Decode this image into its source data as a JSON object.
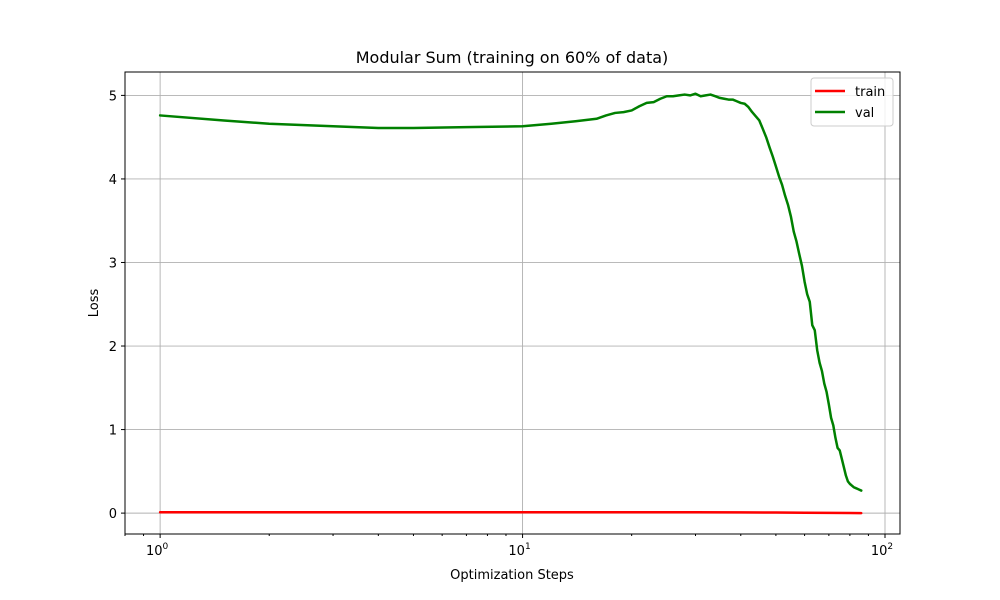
{
  "chart_data": {
    "type": "line",
    "title": "Modular Sum (training on 60% of data)",
    "xlabel": "Optimization Steps",
    "ylabel": "Loss",
    "xscale": "log",
    "xlim": [
      0.8,
      110
    ],
    "ylim": [
      -0.25,
      5.28
    ],
    "xticks": [
      {
        "value": 1,
        "base": "10",
        "exp": "0"
      },
      {
        "value": 10,
        "base": "10",
        "exp": "1"
      },
      {
        "value": 100,
        "base": "10",
        "exp": "2"
      }
    ],
    "yticks": [
      0,
      1,
      2,
      3,
      4,
      5
    ],
    "ytick_labels": [
      "0",
      "1",
      "2",
      "3",
      "4",
      "5"
    ],
    "grid": true,
    "legend_position": "top-right",
    "series": [
      {
        "name": "train",
        "color": "#ff0000",
        "x": [
          1,
          2,
          5,
          10,
          20,
          30,
          40,
          50,
          60,
          70,
          80,
          86
        ],
        "y": [
          0.01,
          0.01,
          0.01,
          0.01,
          0.01,
          0.01,
          0.009,
          0.007,
          0.005,
          0.003,
          0.001,
          0.0
        ]
      },
      {
        "name": "val",
        "color": "#008000",
        "x": [
          1,
          1.5,
          2,
          3,
          4,
          5,
          7,
          10,
          12,
          14,
          16,
          17,
          18,
          19,
          20,
          21,
          22,
          23,
          24,
          25,
          26,
          27,
          28,
          29,
          30,
          31,
          32,
          33,
          34,
          35,
          36,
          37,
          38,
          39,
          40,
          41,
          42,
          43,
          44,
          45,
          46,
          47,
          48,
          49,
          50,
          51,
          52,
          53,
          54,
          55,
          56,
          57,
          58,
          59,
          60,
          61,
          62,
          63,
          64,
          65,
          66,
          67,
          68,
          69,
          70,
          71,
          72,
          73,
          74,
          75,
          76,
          77,
          78,
          79,
          80,
          81,
          82,
          83,
          84,
          85,
          86
        ],
        "y": [
          4.76,
          4.7,
          4.66,
          4.63,
          4.61,
          4.61,
          4.62,
          4.63,
          4.66,
          4.69,
          4.72,
          4.76,
          4.79,
          4.8,
          4.82,
          4.87,
          4.91,
          4.92,
          4.96,
          4.99,
          4.99,
          5.0,
          5.01,
          5.0,
          5.02,
          4.99,
          5.0,
          5.01,
          4.99,
          4.97,
          4.96,
          4.95,
          4.95,
          4.93,
          4.91,
          4.9,
          4.86,
          4.8,
          4.75,
          4.7,
          4.6,
          4.5,
          4.38,
          4.27,
          4.15,
          4.03,
          3.93,
          3.8,
          3.69,
          3.55,
          3.37,
          3.25,
          3.1,
          2.96,
          2.77,
          2.62,
          2.53,
          2.25,
          2.19,
          1.95,
          1.8,
          1.7,
          1.55,
          1.45,
          1.3,
          1.14,
          1.05,
          0.9,
          0.78,
          0.75,
          0.65,
          0.55,
          0.45,
          0.38,
          0.35,
          0.33,
          0.31,
          0.3,
          0.29,
          0.28,
          0.27
        ]
      }
    ]
  }
}
